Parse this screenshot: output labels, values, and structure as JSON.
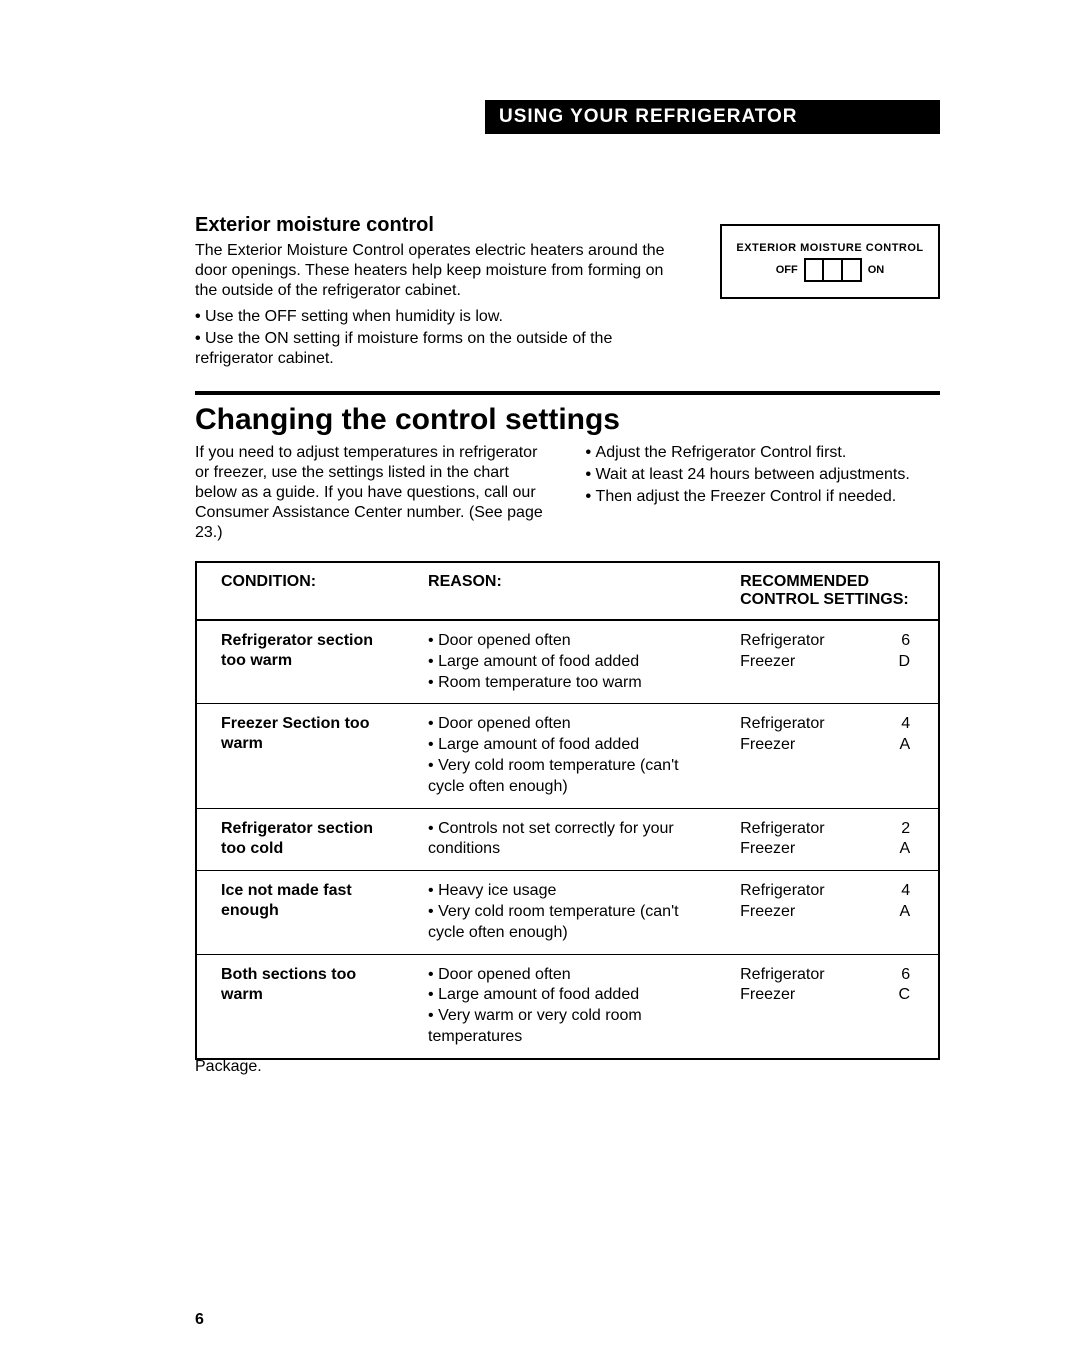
{
  "header_bar": "USING YOUR REFRIGERATOR",
  "moisture": {
    "heading": "Exterior moisture control",
    "paragraph": "The Exterior Moisture Control operates electric heaters around the door openings. These heaters help keep moisture from forming on the outside of the refrigerator cabinet.",
    "bullets": [
      "Use the OFF setting when humidity is low.",
      "Use the ON setting if moisture forms on the outside of the refrigerator cabinet."
    ],
    "diagram": {
      "title": "EXTERIOR MOISTURE CONTROL",
      "off": "OFF",
      "on": "ON"
    }
  },
  "changing": {
    "heading": "Changing the control settings",
    "left_text": "If you need to adjust temperatures in refrigerator or freezer, use the settings listed in the chart below as a guide. If you have questions, call our Consumer Assistance Center number. (See page 23.)",
    "right_bullets": [
      "Adjust the Refrigerator Control first.",
      "Wait at least 24 hours between adjustments.",
      "Then adjust the Freezer Control if needed."
    ]
  },
  "table": {
    "headers": {
      "condition": "CONDITION:",
      "reason": "REASON:",
      "recommended": "RECOMMENDED CONTROL SETTINGS:"
    },
    "rows": [
      {
        "condition": "Refrigerator section too warm",
        "reasons": [
          "Door opened often",
          "Large amount of food added",
          "Room temperature too warm"
        ],
        "rec": [
          [
            "Refrigerator",
            "6"
          ],
          [
            "Freezer",
            "D"
          ]
        ]
      },
      {
        "condition": "Freezer Section too warm",
        "reasons": [
          "Door opened often",
          "Large amount of food added",
          "Very cold room temperature (can't cycle often enough)"
        ],
        "rec": [
          [
            "Refrigerator",
            "4"
          ],
          [
            "Freezer",
            "A"
          ]
        ]
      },
      {
        "condition": "Refrigerator section too cold",
        "reasons": [
          "Controls not set correctly for your conditions"
        ],
        "rec": [
          [
            "Refrigerator",
            "2"
          ],
          [
            "Freezer",
            "A"
          ]
        ]
      },
      {
        "condition": "Ice not made fast enough",
        "reasons": [
          "Heavy ice usage",
          "Very cold room temperature (can't cycle often enough)"
        ],
        "rec": [
          [
            "Refrigerator",
            "4"
          ],
          [
            "Freezer",
            "A"
          ]
        ]
      },
      {
        "condition": "Both sections too warm",
        "reasons": [
          "Door opened often",
          "Large amount of food added",
          "Very warm or very cold room temperatures"
        ],
        "rec": [
          [
            "Refrigerator",
            "6"
          ],
          [
            "Freezer",
            "C"
          ]
        ]
      }
    ]
  },
  "footer_fragment": "Package.",
  "page_number": "6",
  "colors": {
    "text": "#000000",
    "background": "#ffffff",
    "inverse_bg": "#000000",
    "inverse_text": "#ffffff"
  },
  "typography": {
    "base_fontsize": 16,
    "heading_fontsize": 20,
    "big_heading_fontsize": 30,
    "header_bar_fontsize": 19,
    "diagram_title_fontsize": 11
  }
}
